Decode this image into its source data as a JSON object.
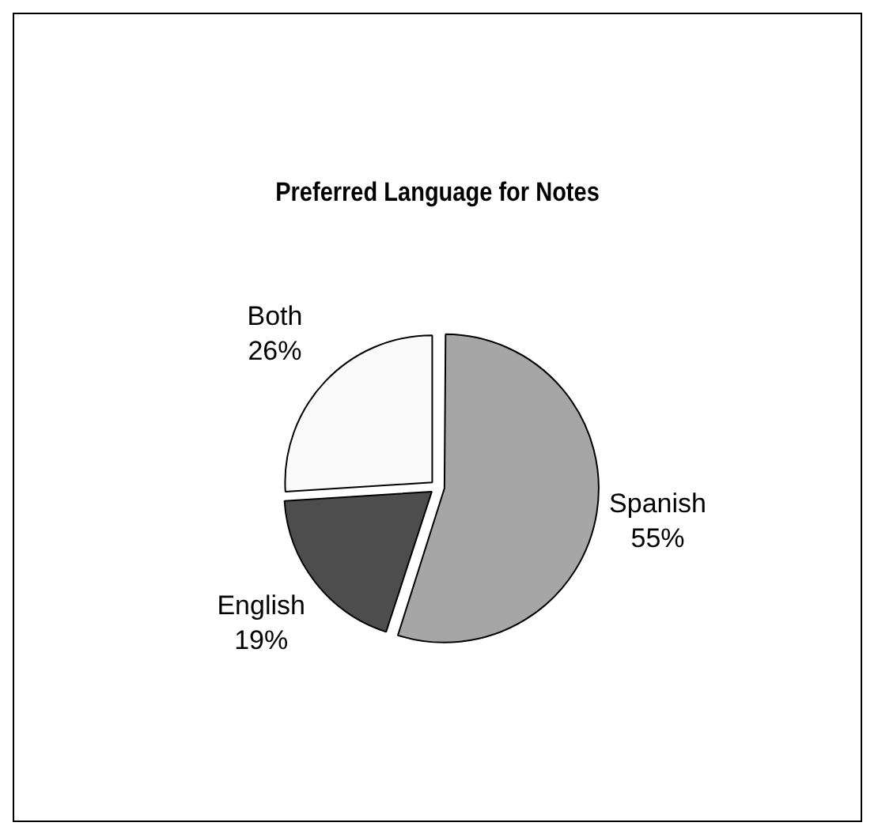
{
  "chart_data": {
    "type": "pie",
    "title": "Preferred Language for Notes",
    "categories": [
      "Spanish",
      "English",
      "Both"
    ],
    "values": [
      55,
      19,
      26
    ],
    "colors": [
      "#a6a6a6",
      "#4d4d4d",
      "#fafafa"
    ],
    "value_labels": [
      "55%",
      "19%",
      "26%"
    ],
    "legend": false
  }
}
